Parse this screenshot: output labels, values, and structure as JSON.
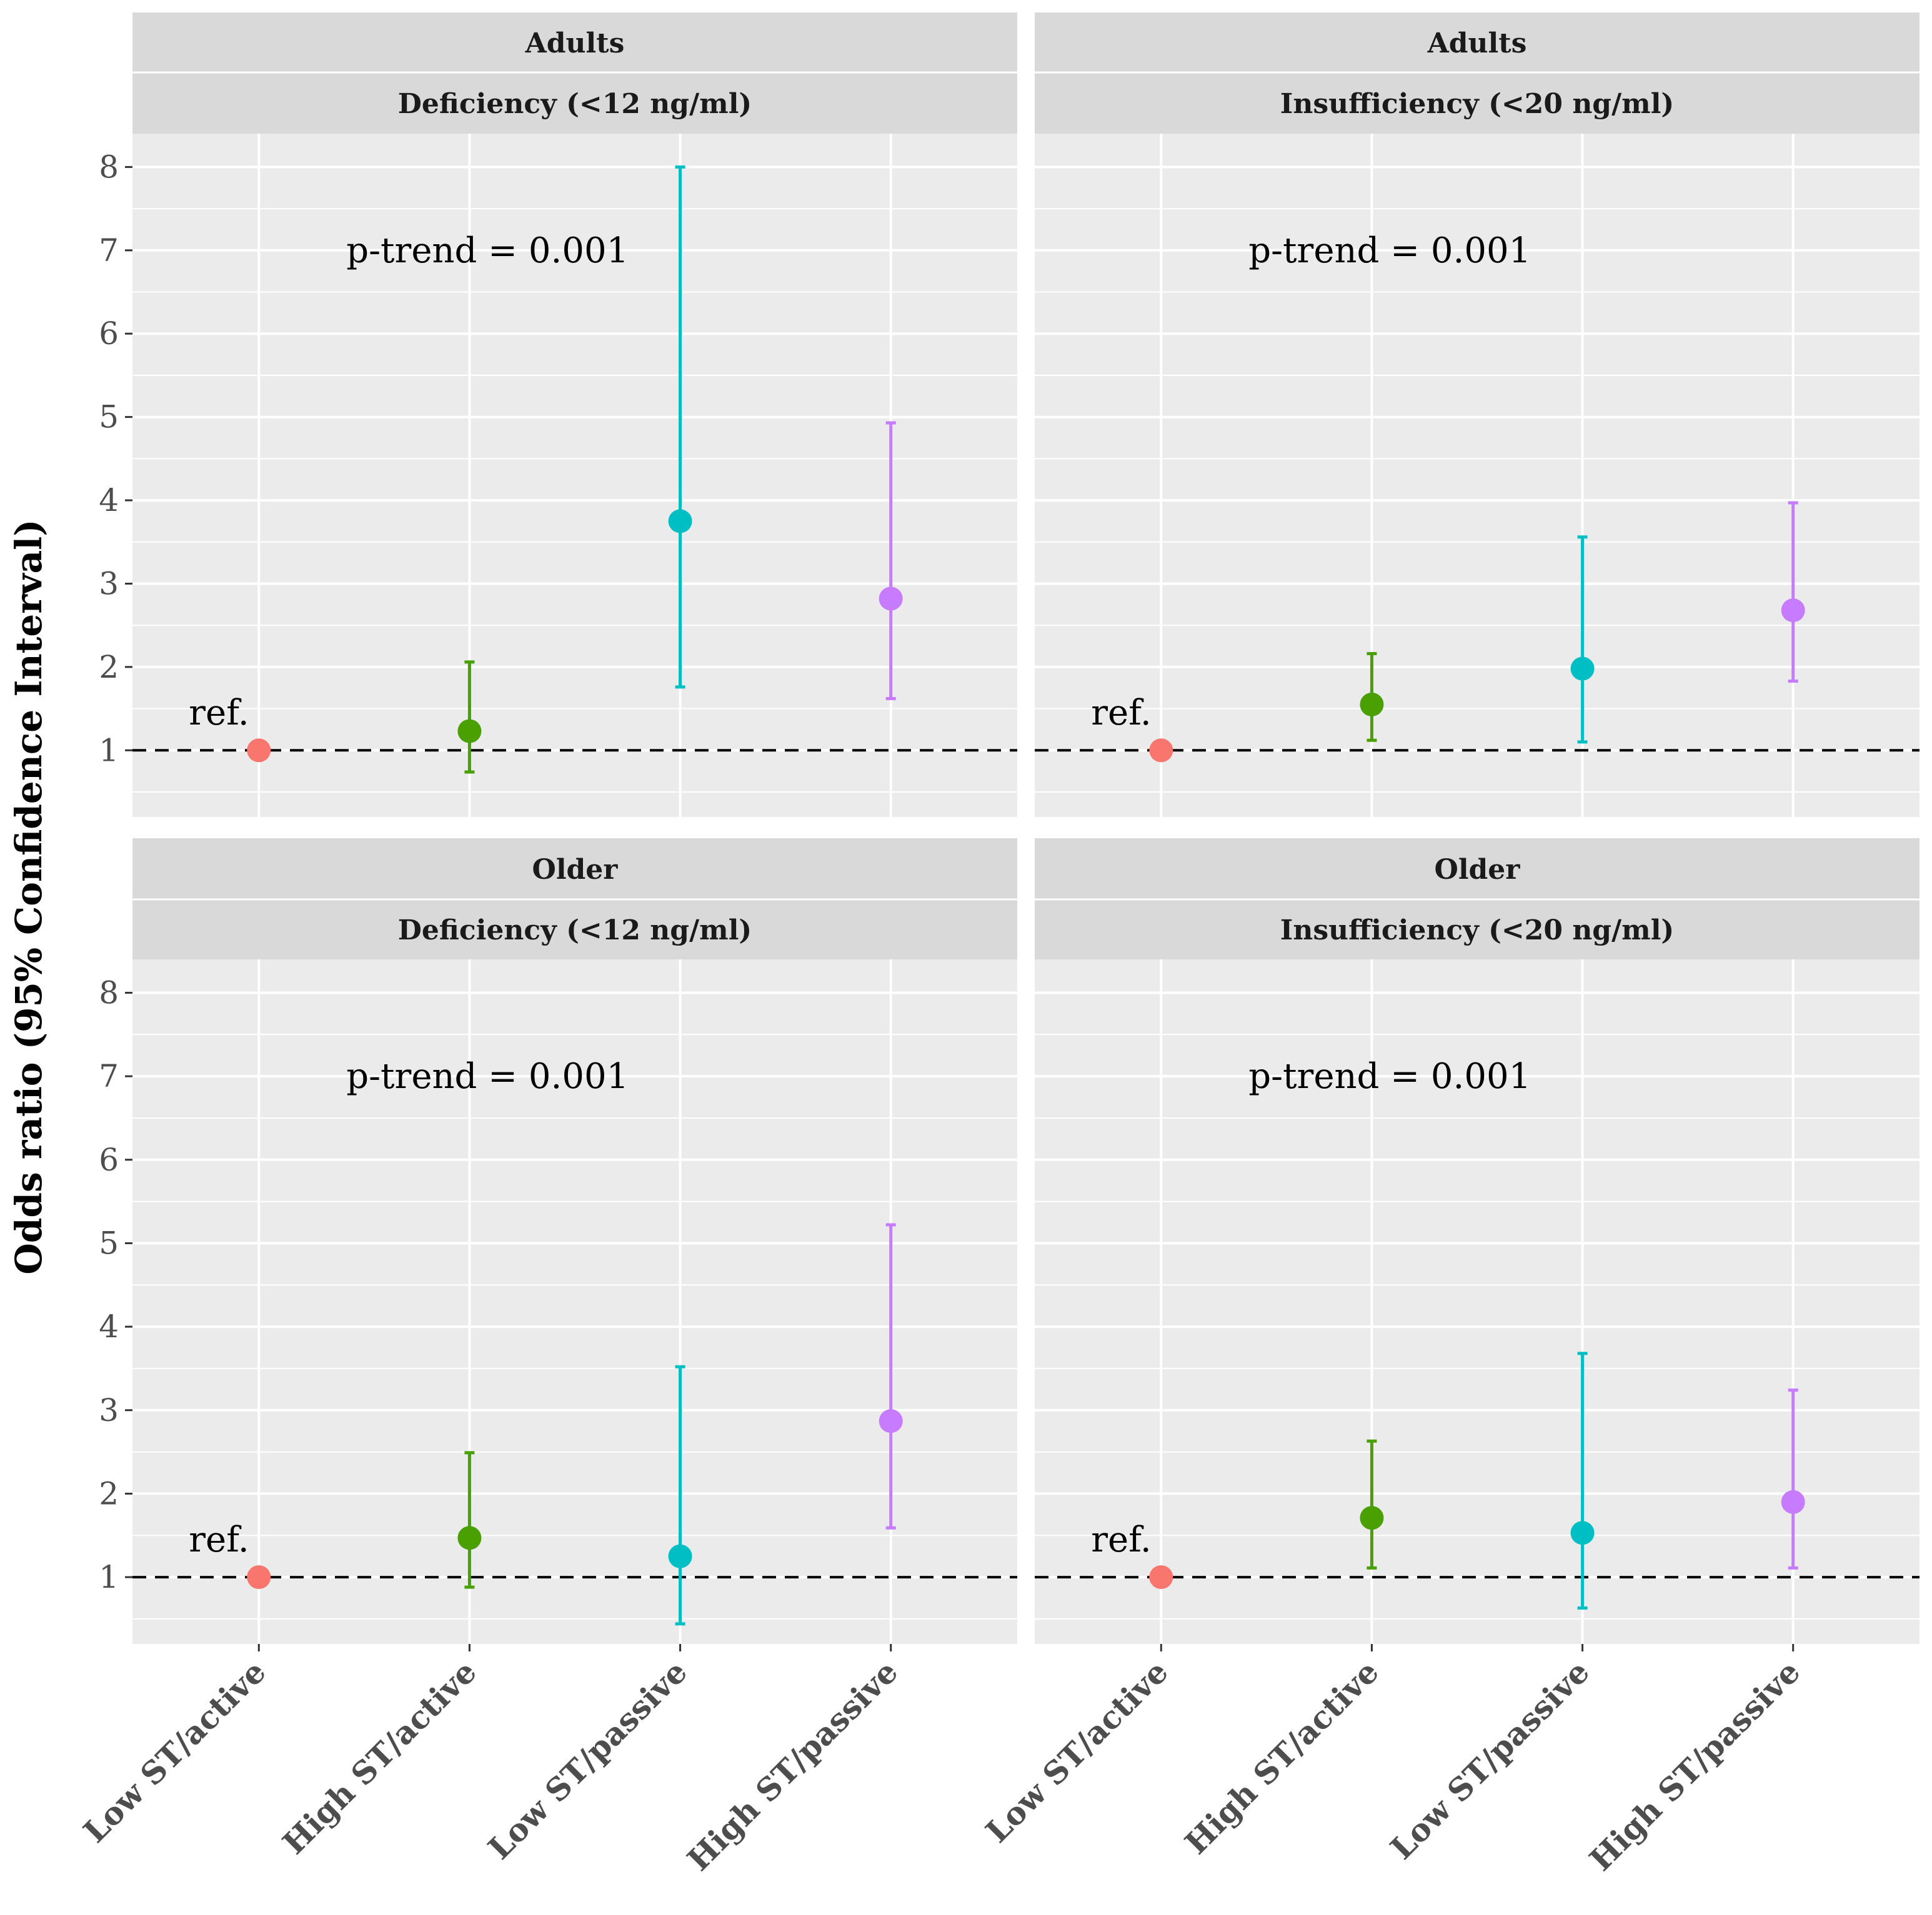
{
  "chart_data": {
    "type": "scatter",
    "subtype": "point-errorbar faceted",
    "ylabel": "Odds ratio (95% Confidence Interval)",
    "xlabel": "",
    "ylim": [
      0.2,
      8.4
    ],
    "y_ticks": [
      1,
      2,
      3,
      4,
      5,
      6,
      7,
      8
    ],
    "categories": [
      "Low ST/active",
      "High ST/active",
      "Low ST/passive",
      "High ST/passive"
    ],
    "colors": [
      "#F8766D",
      "#49A000",
      "#00BFC4",
      "#C77CFF"
    ],
    "reference_line": 1,
    "grid": true,
    "legend": "none",
    "panels": [
      {
        "strip_top": "Adults",
        "strip_bottom": "Deficiency (<12 ng/ml)",
        "annotation": "p-trend = 0.001",
        "ref_label": "ref.",
        "points": [
          {
            "category": "Low ST/active",
            "or": 1.0,
            "lo": null,
            "hi": null
          },
          {
            "category": "High ST/active",
            "or": 1.23,
            "lo": 0.74,
            "hi": 2.06
          },
          {
            "category": "Low ST/passive",
            "or": 3.75,
            "lo": 1.76,
            "hi": 8.0
          },
          {
            "category": "High ST/passive",
            "or": 2.82,
            "lo": 1.62,
            "hi": 4.93
          }
        ]
      },
      {
        "strip_top": "Adults",
        "strip_bottom": "Insufficiency (<20 ng/ml)",
        "annotation": "p-trend = 0.001",
        "ref_label": "ref.",
        "points": [
          {
            "category": "Low ST/active",
            "or": 1.0,
            "lo": null,
            "hi": null
          },
          {
            "category": "High ST/active",
            "or": 1.55,
            "lo": 1.12,
            "hi": 2.16
          },
          {
            "category": "Low ST/passive",
            "or": 1.98,
            "lo": 1.1,
            "hi": 3.56
          },
          {
            "category": "High ST/passive",
            "or": 2.68,
            "lo": 1.83,
            "hi": 3.97
          }
        ]
      },
      {
        "strip_top": "Older",
        "strip_bottom": "Deficiency (<12 ng/ml)",
        "annotation": "p-trend = 0.001",
        "ref_label": "ref.",
        "points": [
          {
            "category": "Low ST/active",
            "or": 1.0,
            "lo": null,
            "hi": null
          },
          {
            "category": "High ST/active",
            "or": 1.47,
            "lo": 0.88,
            "hi": 2.49
          },
          {
            "category": "Low ST/passive",
            "or": 1.25,
            "lo": 0.44,
            "hi": 3.52
          },
          {
            "category": "High ST/passive",
            "or": 2.87,
            "lo": 1.59,
            "hi": 5.22
          }
        ]
      },
      {
        "strip_top": "Older",
        "strip_bottom": "Insufficiency (<20 ng/ml)",
        "annotation": "p-trend = 0.001",
        "ref_label": "ref.",
        "points": [
          {
            "category": "Low ST/active",
            "or": 1.0,
            "lo": null,
            "hi": null
          },
          {
            "category": "High ST/active",
            "or": 1.71,
            "lo": 1.11,
            "hi": 2.63
          },
          {
            "category": "Low ST/passive",
            "or": 1.53,
            "lo": 0.63,
            "hi": 3.68
          },
          {
            "category": "High ST/passive",
            "or": 1.9,
            "lo": 1.11,
            "hi": 3.24
          }
        ]
      }
    ]
  }
}
